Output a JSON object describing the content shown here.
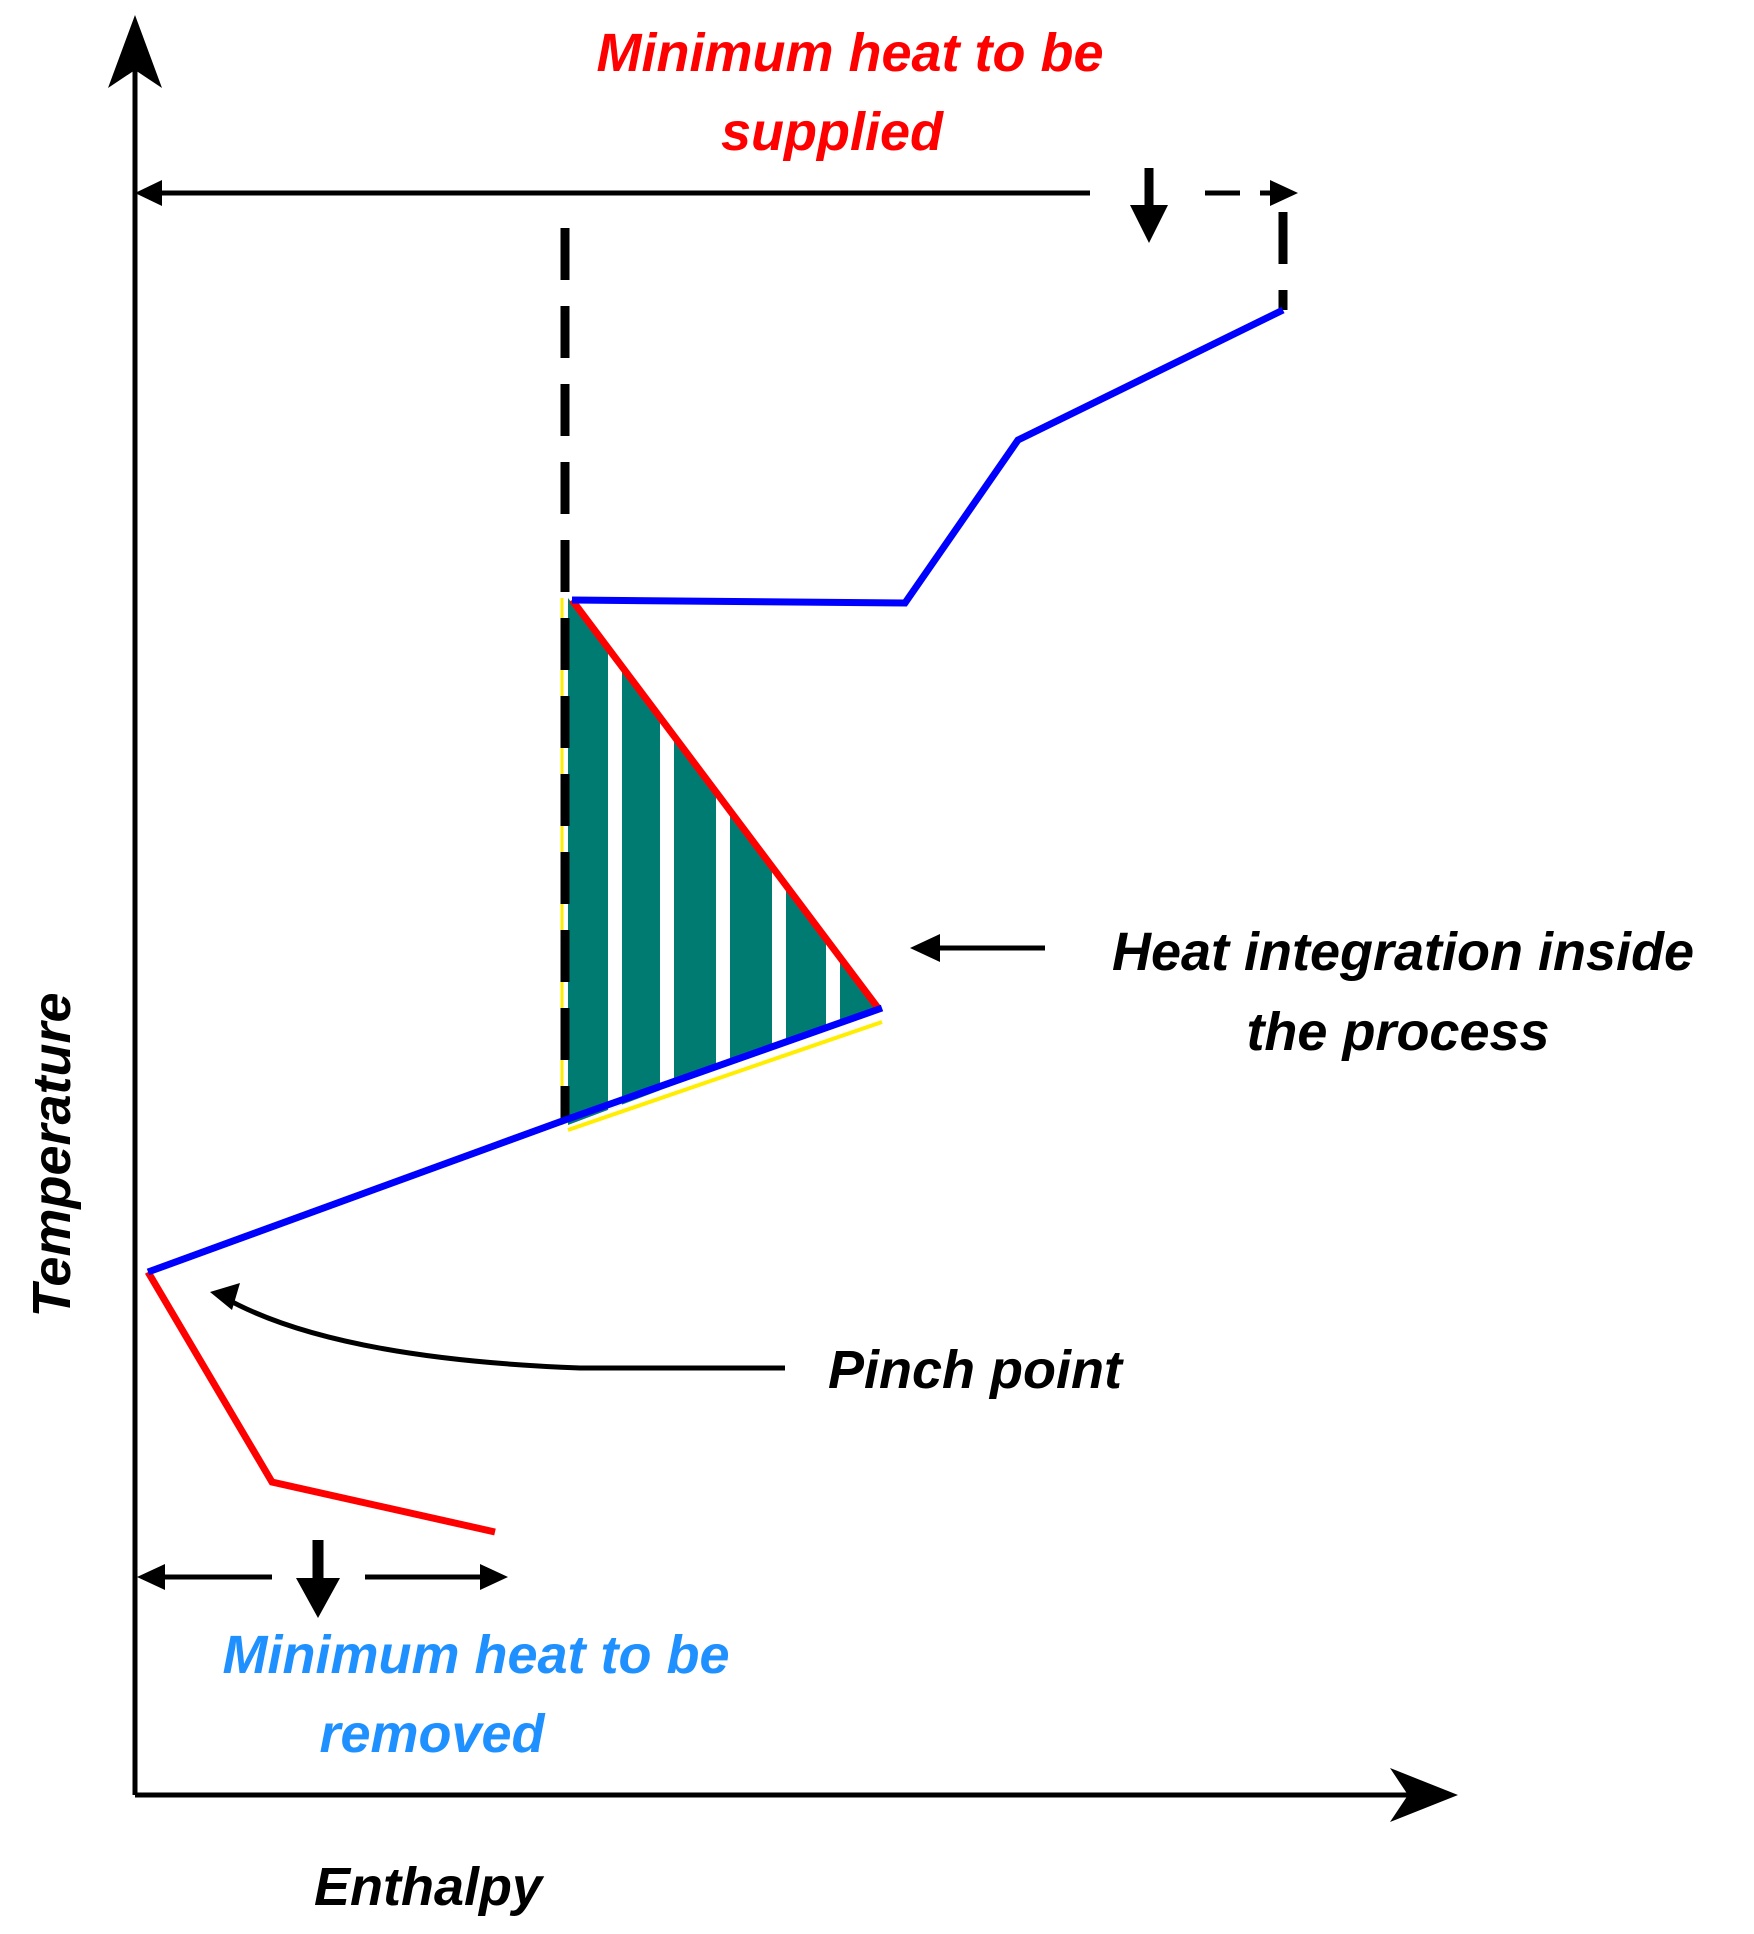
{
  "axes": {
    "x_label": "Enthalpy",
    "y_label": "Temperature"
  },
  "labels": {
    "heat_supplied_line1": "Minimum heat to be",
    "heat_supplied_line2": "supplied",
    "heat_removed_line1": "Minimum heat to be",
    "heat_removed_line2": "removed",
    "integration_line1": "Heat integration inside",
    "integration_line2": "the process",
    "pinch_point": "Pinch point"
  },
  "colors": {
    "hot_curve": "#ff0000",
    "cold_curve": "#0000ff",
    "integration_fill": "#007b72",
    "heat_supplied_text": "#ff0000",
    "heat_removed_text": "#1e90ff",
    "axis": "#000000"
  }
}
